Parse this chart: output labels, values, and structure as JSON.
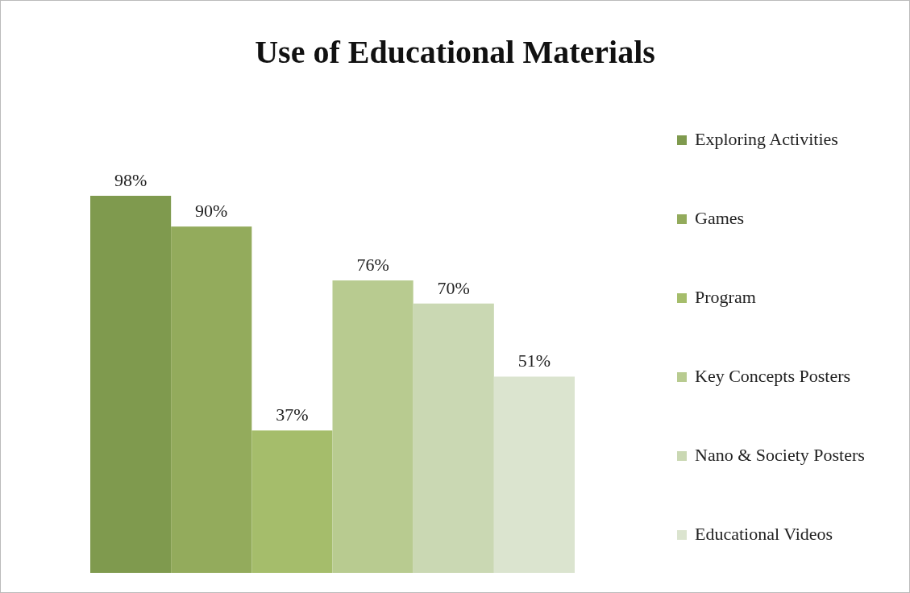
{
  "chart_data": {
    "type": "bar",
    "title": "Use of Educational Materials",
    "categories": [
      null
    ],
    "legend": "right",
    "series": [
      {
        "name": "Exploring Activities",
        "color": "#7f9a4e",
        "values": [
          98
        ],
        "value_labels": [
          "98%"
        ]
      },
      {
        "name": "Games",
        "color": "#93ab5c",
        "values": [
          90
        ],
        "value_labels": [
          "90%"
        ]
      },
      {
        "name": "Program",
        "color": "#a5bd6b",
        "values": [
          37
        ],
        "value_labels": [
          "37%"
        ]
      },
      {
        "name": "Key Concepts Posters",
        "color": "#b8cb90",
        "values": [
          76
        ],
        "value_labels": [
          "76%"
        ]
      },
      {
        "name": "Nano & Society Posters",
        "color": "#cad8b3",
        "values": [
          70
        ],
        "value_labels": [
          "70%"
        ]
      },
      {
        "name": "Educational Videos",
        "color": "#dbe4cf",
        "values": [
          51
        ],
        "value_labels": [
          "51%"
        ]
      }
    ]
  }
}
